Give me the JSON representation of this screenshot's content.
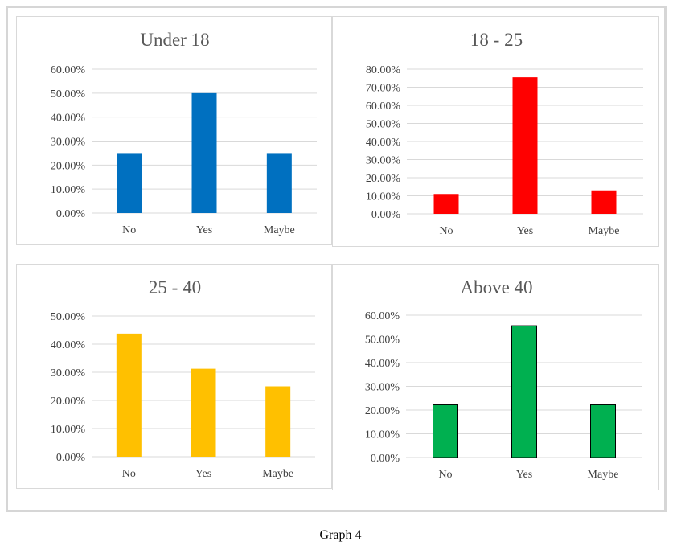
{
  "caption": "Graph 4",
  "colors": {
    "under18": "#0070c0",
    "age18_25": "#ff0000",
    "age25_40": "#ffc000",
    "above40": "#00b050",
    "grid": "#d9d9d9",
    "text": "#404040",
    "title": "#595959"
  },
  "chart_data": [
    {
      "type": "bar",
      "title": "Under 18",
      "categories": [
        "No",
        "Yes",
        "Maybe"
      ],
      "values": [
        25,
        50,
        25
      ],
      "ylim": [
        0,
        60
      ],
      "yticks": [
        "0.00%",
        "10.00%",
        "20.00%",
        "30.00%",
        "40.00%",
        "50.00%",
        "60.00%"
      ],
      "color": "#0070c0",
      "bar_outline": false,
      "grid": true
    },
    {
      "type": "bar",
      "title": "18 - 25",
      "categories": [
        "No",
        "Yes",
        "Maybe"
      ],
      "values": [
        11,
        75.5,
        13
      ],
      "ylim": [
        0,
        80
      ],
      "yticks": [
        "0.00%",
        "10.00%",
        "20.00%",
        "30.00%",
        "40.00%",
        "50.00%",
        "60.00%",
        "70.00%",
        "80.00%"
      ],
      "color": "#ff0000",
      "bar_outline": false,
      "grid": true
    },
    {
      "type": "bar",
      "title": "25 - 40",
      "categories": [
        "No",
        "Yes",
        "Maybe"
      ],
      "values": [
        43.75,
        31.25,
        25
      ],
      "ylim": [
        0,
        50
      ],
      "yticks": [
        "0.00%",
        "10.00%",
        "20.00%",
        "30.00%",
        "40.00%",
        "50.00%"
      ],
      "color": "#ffc000",
      "bar_outline": false,
      "grid": true
    },
    {
      "type": "bar",
      "title": "Above 40",
      "categories": [
        "No",
        "Yes",
        "Maybe"
      ],
      "values": [
        22.22,
        55.56,
        22.22
      ],
      "ylim": [
        0,
        60
      ],
      "yticks": [
        "0.00%",
        "10.00%",
        "20.00%",
        "30.00%",
        "40.00%",
        "50.00%",
        "60.00%"
      ],
      "color": "#00b050",
      "bar_outline": true,
      "grid": true
    }
  ]
}
